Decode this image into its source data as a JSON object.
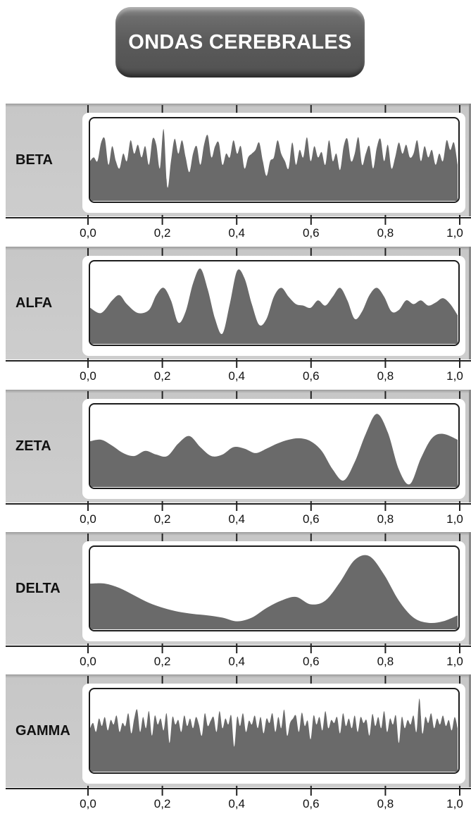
{
  "title": "ONDAS CEREBRALES",
  "x_tick_labels": [
    "0,0",
    "0,2",
    "0,4",
    "0,6",
    "0,8",
    "1,0"
  ],
  "chart_data": [
    {
      "type": "area",
      "label": "BETA",
      "xlim": [
        0,
        1
      ],
      "x": [
        0,
        0.01,
        0.02,
        0.03,
        0.04,
        0.05,
        0.06,
        0.07,
        0.08,
        0.09,
        0.1,
        0.11,
        0.12,
        0.13,
        0.14,
        0.15,
        0.16,
        0.17,
        0.18,
        0.19,
        0.2,
        0.21,
        0.22,
        0.23,
        0.24,
        0.25,
        0.26,
        0.27,
        0.28,
        0.29,
        0.3,
        0.31,
        0.32,
        0.33,
        0.34,
        0.35,
        0.36,
        0.37,
        0.38,
        0.39,
        0.4,
        0.41,
        0.42,
        0.43,
        0.44,
        0.45,
        0.46,
        0.47,
        0.48,
        0.49,
        0.5,
        0.51,
        0.52,
        0.53,
        0.54,
        0.55,
        0.56,
        0.57,
        0.58,
        0.59,
        0.6,
        0.61,
        0.62,
        0.63,
        0.64,
        0.65,
        0.66,
        0.67,
        0.68,
        0.69,
        0.7,
        0.71,
        0.72,
        0.73,
        0.74,
        0.75,
        0.76,
        0.77,
        0.78,
        0.79,
        0.8,
        0.81,
        0.82,
        0.83,
        0.84,
        0.85,
        0.86,
        0.87,
        0.88,
        0.89,
        0.9,
        0.91,
        0.92,
        0.93,
        0.94,
        0.95,
        0.96,
        0.97,
        0.98,
        0.99,
        1
      ],
      "values": [
        0.5,
        0.55,
        0.5,
        0.75,
        0.8,
        0.45,
        0.7,
        0.5,
        0.4,
        0.6,
        0.5,
        0.78,
        0.6,
        0.72,
        0.55,
        0.7,
        0.45,
        0.8,
        0.72,
        0.4,
        0.93,
        0.15,
        0.5,
        0.8,
        0.6,
        0.78,
        0.55,
        0.35,
        0.6,
        0.7,
        0.45,
        0.72,
        0.85,
        0.55,
        0.7,
        0.75,
        0.45,
        0.6,
        0.55,
        0.78,
        0.6,
        0.7,
        0.4,
        0.55,
        0.6,
        0.65,
        0.75,
        0.5,
        0.3,
        0.5,
        0.55,
        0.78,
        0.6,
        0.5,
        0.4,
        0.75,
        0.45,
        0.65,
        0.55,
        0.82,
        0.5,
        0.7,
        0.55,
        0.62,
        0.45,
        0.78,
        0.5,
        0.6,
        0.38,
        0.7,
        0.8,
        0.5,
        0.6,
        0.82,
        0.45,
        0.6,
        0.7,
        0.4,
        0.68,
        0.8,
        0.5,
        0.72,
        0.4,
        0.55,
        0.75,
        0.6,
        0.72,
        0.55,
        0.6,
        0.78,
        0.5,
        0.7,
        0.55,
        0.65,
        0.45,
        0.6,
        0.5,
        0.78,
        0.65,
        0.75,
        0.45
      ]
    },
    {
      "type": "area",
      "label": "ALFA",
      "xlim": [
        0,
        1
      ],
      "x": [
        0,
        0.03,
        0.06,
        0.08,
        0.1,
        0.13,
        0.16,
        0.18,
        0.2,
        0.22,
        0.24,
        0.26,
        0.28,
        0.3,
        0.32,
        0.34,
        0.36,
        0.38,
        0.4,
        0.42,
        0.44,
        0.46,
        0.48,
        0.5,
        0.52,
        0.54,
        0.56,
        0.58,
        0.6,
        0.62,
        0.64,
        0.66,
        0.68,
        0.7,
        0.72,
        0.74,
        0.76,
        0.78,
        0.8,
        0.82,
        0.84,
        0.86,
        0.88,
        0.9,
        0.92,
        0.94,
        0.96,
        0.98,
        1
      ],
      "values": [
        0.45,
        0.38,
        0.55,
        0.62,
        0.5,
        0.38,
        0.42,
        0.62,
        0.72,
        0.55,
        0.25,
        0.4,
        0.78,
        0.98,
        0.7,
        0.3,
        0.1,
        0.5,
        0.95,
        0.85,
        0.5,
        0.22,
        0.3,
        0.6,
        0.72,
        0.6,
        0.5,
        0.48,
        0.45,
        0.55,
        0.48,
        0.6,
        0.72,
        0.55,
        0.3,
        0.4,
        0.62,
        0.72,
        0.6,
        0.4,
        0.42,
        0.55,
        0.5,
        0.55,
        0.48,
        0.52,
        0.58,
        0.5,
        0.35
      ]
    },
    {
      "type": "area",
      "label": "ZETA",
      "xlim": [
        0,
        1
      ],
      "x": [
        0,
        0.03,
        0.06,
        0.09,
        0.12,
        0.15,
        0.18,
        0.21,
        0.24,
        0.27,
        0.3,
        0.33,
        0.36,
        0.39,
        0.42,
        0.45,
        0.48,
        0.51,
        0.54,
        0.57,
        0.6,
        0.63,
        0.66,
        0.69,
        0.72,
        0.75,
        0.78,
        0.81,
        0.84,
        0.87,
        0.9,
        0.93,
        0.96,
        1
      ],
      "values": [
        0.58,
        0.6,
        0.52,
        0.42,
        0.38,
        0.45,
        0.4,
        0.38,
        0.55,
        0.65,
        0.5,
        0.38,
        0.4,
        0.5,
        0.48,
        0.42,
        0.48,
        0.55,
        0.6,
        0.62,
        0.58,
        0.45,
        0.2,
        0.05,
        0.3,
        0.68,
        0.95,
        0.7,
        0.2,
        0.0,
        0.35,
        0.62,
        0.68,
        0.6
      ]
    },
    {
      "type": "area",
      "label": "DELTA",
      "xlim": [
        0,
        1
      ],
      "x": [
        0,
        0.04,
        0.08,
        0.12,
        0.16,
        0.2,
        0.24,
        0.28,
        0.32,
        0.36,
        0.4,
        0.44,
        0.48,
        0.52,
        0.56,
        0.6,
        0.64,
        0.68,
        0.72,
        0.76,
        0.8,
        0.84,
        0.88,
        0.92,
        0.96,
        1
      ],
      "values": [
        0.58,
        0.58,
        0.52,
        0.42,
        0.32,
        0.25,
        0.2,
        0.17,
        0.15,
        0.12,
        0.07,
        0.12,
        0.25,
        0.35,
        0.4,
        0.3,
        0.35,
        0.6,
        0.9,
        0.95,
        0.7,
        0.35,
        0.12,
        0.05,
        0.07,
        0.15
      ]
    },
    {
      "type": "area",
      "label": "GAMMA",
      "xlim": [
        0,
        1
      ],
      "x": [
        0,
        0.008,
        0.016,
        0.024,
        0.032,
        0.04,
        0.048,
        0.056,
        0.064,
        0.072,
        0.08,
        0.088,
        0.096,
        0.104,
        0.112,
        0.12,
        0.128,
        0.136,
        0.144,
        0.152,
        0.16,
        0.168,
        0.176,
        0.184,
        0.192,
        0.2,
        0.208,
        0.216,
        0.224,
        0.232,
        0.24,
        0.248,
        0.256,
        0.264,
        0.272,
        0.28,
        0.288,
        0.296,
        0.304,
        0.312,
        0.32,
        0.328,
        0.336,
        0.344,
        0.352,
        0.36,
        0.368,
        0.376,
        0.384,
        0.392,
        0.4,
        0.408,
        0.416,
        0.424,
        0.432,
        0.44,
        0.448,
        0.456,
        0.464,
        0.472,
        0.48,
        0.488,
        0.496,
        0.504,
        0.512,
        0.52,
        0.528,
        0.536,
        0.544,
        0.552,
        0.56,
        0.568,
        0.576,
        0.584,
        0.592,
        0.6,
        0.608,
        0.616,
        0.624,
        0.632,
        0.64,
        0.648,
        0.656,
        0.664,
        0.672,
        0.68,
        0.688,
        0.696,
        0.704,
        0.712,
        0.72,
        0.728,
        0.736,
        0.744,
        0.752,
        0.76,
        0.768,
        0.776,
        0.784,
        0.792,
        0.8,
        0.808,
        0.816,
        0.824,
        0.832,
        0.84,
        0.848,
        0.856,
        0.864,
        0.872,
        0.88,
        0.888,
        0.896,
        0.904,
        0.912,
        0.92,
        0.928,
        0.936,
        0.944,
        0.952,
        0.96,
        0.968,
        0.976,
        0.984,
        0.992,
        1
      ],
      "values": [
        0.55,
        0.62,
        0.5,
        0.68,
        0.58,
        0.7,
        0.52,
        0.66,
        0.6,
        0.72,
        0.5,
        0.62,
        0.58,
        0.75,
        0.48,
        0.68,
        0.8,
        0.5,
        0.7,
        0.55,
        0.78,
        0.45,
        0.72,
        0.6,
        0.68,
        0.52,
        0.75,
        0.35,
        0.7,
        0.6,
        0.66,
        0.5,
        0.72,
        0.58,
        0.68,
        0.55,
        0.7,
        0.6,
        0.45,
        0.75,
        0.58,
        0.65,
        0.7,
        0.5,
        0.78,
        0.55,
        0.68,
        0.6,
        0.72,
        0.3,
        0.7,
        0.58,
        0.75,
        0.5,
        0.65,
        0.6,
        0.72,
        0.55,
        0.7,
        0.48,
        0.68,
        0.62,
        0.75,
        0.5,
        0.7,
        0.55,
        0.8,
        0.45,
        0.62,
        0.68,
        0.72,
        0.5,
        0.76,
        0.58,
        0.65,
        0.4,
        0.72,
        0.6,
        0.7,
        0.52,
        0.78,
        0.55,
        0.66,
        0.62,
        0.7,
        0.48,
        0.75,
        0.58,
        0.68,
        0.55,
        0.72,
        0.5,
        0.7,
        0.62,
        0.66,
        0.45,
        0.74,
        0.58,
        0.7,
        0.55,
        0.78,
        0.5,
        0.68,
        0.6,
        0.72,
        0.35,
        0.7,
        0.55,
        0.66,
        0.6,
        0.72,
        0.5,
        0.95,
        0.48,
        0.7,
        0.62,
        0.75,
        0.55,
        0.68,
        0.6,
        0.72,
        0.58,
        0.66,
        0.52,
        0.7,
        0.55
      ]
    }
  ]
}
